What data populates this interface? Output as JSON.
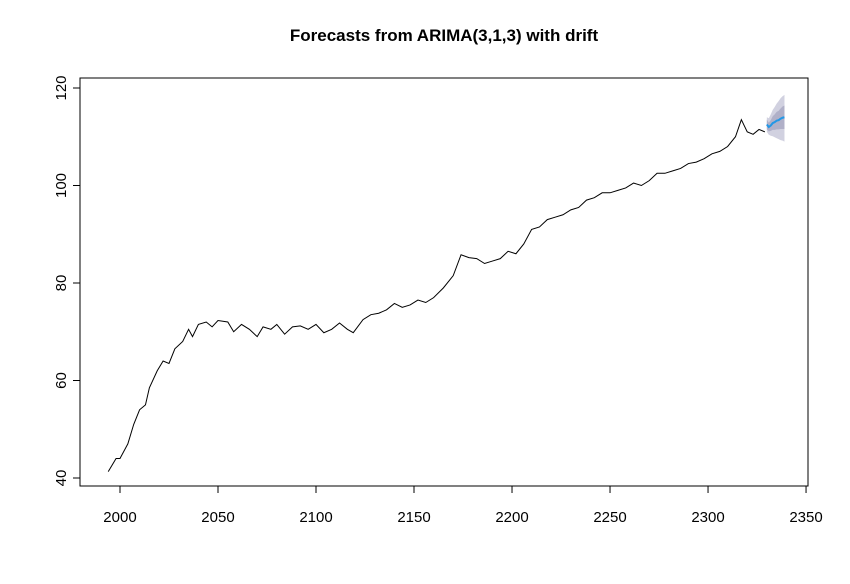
{
  "chart_data": {
    "type": "forecast",
    "title": "Forecasts from ARIMA(3,1,3) with drift",
    "xlim": [
      1979.6,
      2351.0
    ],
    "ylim": [
      38.36,
      122.05
    ],
    "xticks": [
      2000,
      2050,
      2100,
      2150,
      2200,
      2250,
      2300,
      2350
    ],
    "yticks": [
      40,
      60,
      80,
      100,
      120
    ],
    "series": [
      {
        "color": "#000000",
        "x": [
          1994,
          1998,
          2000,
          2004,
          2007,
          2010,
          2013,
          2015,
          2019,
          2022,
          2025,
          2028,
          2032,
          2035,
          2037,
          2040,
          2044,
          2047,
          2050,
          2055,
          2058,
          2062,
          2066,
          2070,
          2073,
          2077,
          2080,
          2084,
          2088,
          2092,
          2096,
          2100,
          2104,
          2108,
          2112,
          2116,
          2119,
          2124,
          2128,
          2132,
          2136,
          2140,
          2144,
          2148,
          2152,
          2156,
          2160,
          2165,
          2170,
          2174,
          2178,
          2182,
          2186,
          2190,
          2194,
          2198,
          2202,
          2206,
          2210,
          2214,
          2218,
          2222,
          2226,
          2230,
          2234,
          2238,
          2242,
          2246,
          2250,
          2254,
          2258,
          2262,
          2266,
          2270,
          2274,
          2278,
          2282,
          2286,
          2290,
          2294,
          2298,
          2302,
          2306,
          2310,
          2314,
          2317,
          2320,
          2323,
          2326,
          2329
        ],
        "values": [
          41.3,
          44,
          44,
          47,
          51,
          54,
          55,
          58.5,
          62,
          64,
          63.5,
          66.5,
          68,
          70.5,
          69,
          71.5,
          72,
          71,
          72.3,
          72,
          70,
          71.5,
          70.5,
          69,
          71,
          70.5,
          71.5,
          69.5,
          71,
          71.2,
          70.5,
          71.5,
          69.8,
          70.5,
          71.8,
          70.5,
          69.8,
          72.5,
          73.5,
          73.8,
          74.5,
          75.8,
          75,
          75.5,
          76.5,
          76,
          77,
          79,
          81.5,
          85.8,
          85.2,
          85,
          84,
          84.5,
          85,
          86.5,
          86,
          88,
          91,
          91.5,
          93,
          93.5,
          94,
          95,
          95.5,
          97,
          97.5,
          98.5,
          98.5,
          99,
          99.5,
          100.5,
          100,
          101,
          102.5,
          102.5,
          103,
          103.5,
          104.5,
          104.8,
          105.5,
          106.5,
          107,
          108,
          110,
          113.5,
          111,
          110.5,
          111.5,
          111
        ]
      },
      {
        "color": "#2297e6",
        "x": [
          2330,
          2331,
          2332,
          2333,
          2334,
          2335,
          2336,
          2337,
          2338,
          2339
        ],
        "values": [
          112.5,
          112,
          112.3,
          112.8,
          113,
          113.3,
          113.4,
          113.7,
          113.9,
          114
        ]
      }
    ],
    "bands": [
      {
        "color": "#d1d1e0",
        "x": [
          2330,
          2331,
          2332,
          2333,
          2334,
          2335,
          2336,
          2337,
          2338,
          2339
        ],
        "lower": [
          111,
          110.4,
          110.2,
          110.1,
          109.9,
          109.7,
          109.5,
          109.3,
          109.2,
          109
        ],
        "upper": [
          114,
          113.8,
          114.6,
          115.5,
          116.1,
          116.8,
          117.3,
          117.9,
          118.3,
          118.6
        ]
      },
      {
        "color": "#b0b0c8",
        "x": [
          2330,
          2331,
          2332,
          2333,
          2334,
          2335,
          2336,
          2337,
          2338,
          2339
        ],
        "lower": [
          111.5,
          111.1,
          111.2,
          111.4,
          111.4,
          111.5,
          111.5,
          111.6,
          111.6,
          111.6
        ],
        "upper": [
          113.5,
          112.9,
          113.4,
          114.2,
          114.6,
          115.1,
          115.3,
          115.8,
          116.2,
          116.4
        ]
      }
    ]
  }
}
